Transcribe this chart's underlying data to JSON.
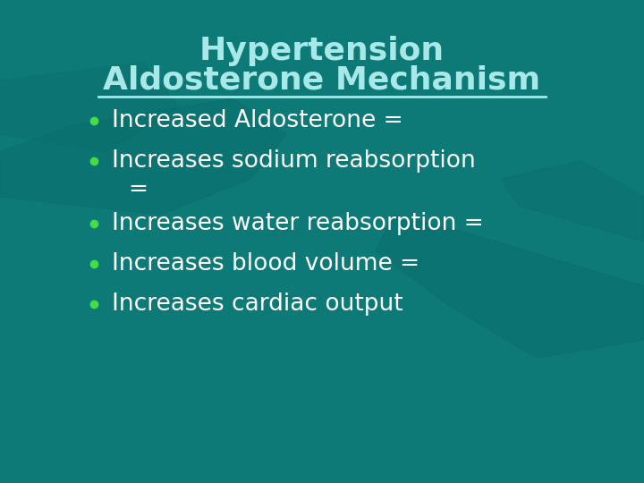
{
  "title_line1": "Hypertension",
  "title_line2": "Aldosterone Mechanism",
  "title_color": "#a8e8e8",
  "underline_color": "#a8e8e8",
  "background_color": "#0d7a78",
  "bullet_color": "#44dd44",
  "text_color": "#ffffff",
  "bullet_points_line1": [
    "Increased Aldosterone =",
    "Increases sodium reabsorption",
    "Increases water reabsorption =",
    "Increases blood volume =",
    "Increases cardiac output"
  ],
  "bullet_points_line2": [
    "",
    "=",
    "",
    "",
    ""
  ],
  "title_fontsize": 26,
  "bullet_fontsize": 19,
  "figsize": [
    7.2,
    5.4
  ],
  "dpi": 100
}
